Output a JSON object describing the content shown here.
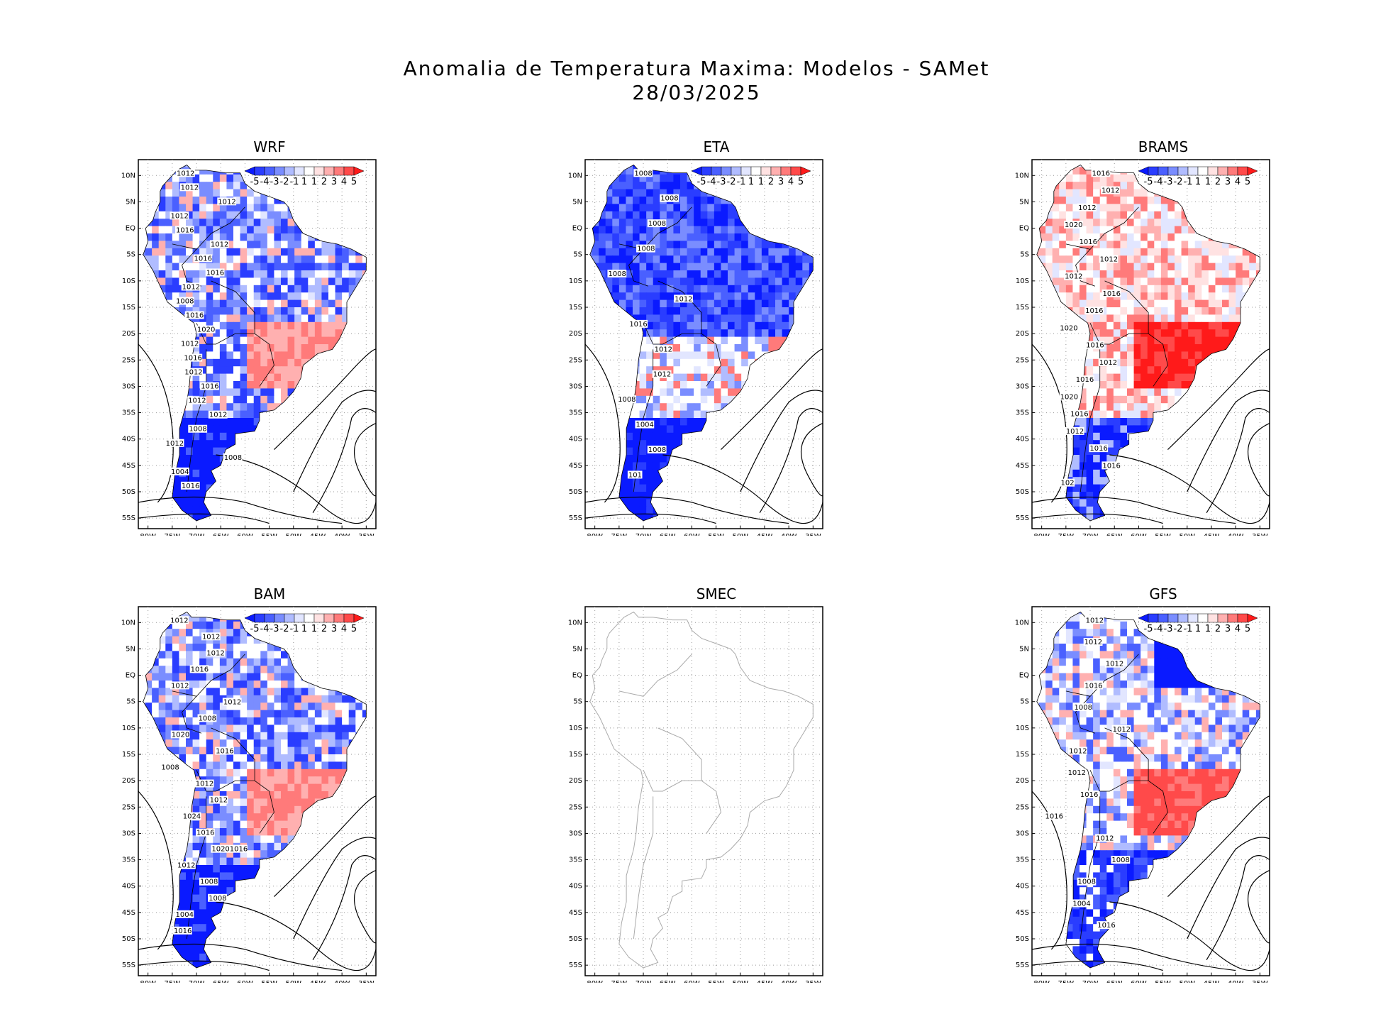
{
  "title_line1": "Anomalia de Temperatura Maxima: Modelos - SAMet",
  "title_line2": "28/03/2025",
  "lat_ticks": [
    "10N",
    "5N",
    "EQ",
    "5S",
    "10S",
    "15S",
    "20S",
    "25S",
    "30S",
    "35S",
    "40S",
    "45S",
    "50S",
    "55S"
  ],
  "lon_ticks": [
    "80W",
    "75W",
    "70W",
    "65W",
    "60W",
    "55W",
    "50W",
    "45W",
    "40W",
    "35W"
  ],
  "colorbar": {
    "labels": [
      "-5",
      "-4",
      "-3",
      "-2",
      "-1",
      "1",
      "1",
      "2",
      "3",
      "4",
      "5"
    ],
    "colors": [
      "#0a1aff",
      "#2a3dff",
      "#4a60ff",
      "#7a8dff",
      "#b0bcff",
      "#e2e6ff",
      "#ffffff",
      "#ffe2e2",
      "#ffb0b0",
      "#ff7a7a",
      "#ff4a4a",
      "#ff1a1a"
    ]
  },
  "panels": [
    {
      "name": "WRF",
      "style": "blue-mixed",
      "labels": [
        "1012",
        "1012",
        "1012",
        "1012",
        "1016",
        "1012",
        "1016",
        "1016",
        "1012",
        "1008",
        "1016",
        "1020",
        "1012",
        "1016",
        "1012",
        "1016",
        "1012",
        "1012",
        "1008",
        "1012",
        "1008",
        "1004",
        "1016"
      ]
    },
    {
      "name": "ETA",
      "style": "blue",
      "labels": [
        "1008",
        "1008",
        "1008",
        "1008",
        "1008",
        "1012",
        "1016",
        "1012",
        "1012",
        "1008",
        "1004",
        "1008",
        "101"
      ]
    },
    {
      "name": "BRAMS",
      "style": "red",
      "labels": [
        "1016",
        "1012",
        "1012",
        "1020",
        "1016",
        "1012",
        "1012",
        "1016",
        "1016",
        "1020",
        "1016",
        "1012",
        "1016",
        "1020",
        "1016",
        "1012",
        "1016",
        "1016",
        "102"
      ]
    },
    {
      "name": "BAM",
      "style": "blue-mixed",
      "labels": [
        "1012",
        "1012",
        "1012",
        "1016",
        "1012",
        "1012",
        "1008",
        "1020",
        "1016",
        "1008",
        "1012",
        "1012",
        "1024",
        "1016",
        "10201016",
        "1012",
        "1008",
        "1008",
        "1004",
        "1016"
      ]
    },
    {
      "name": "SMEC",
      "style": "empty",
      "labels": []
    },
    {
      "name": "GFS",
      "style": "mixed",
      "labels": [
        "1012",
        "1012",
        "1012",
        "1016",
        "1008",
        "1012",
        "1012",
        "1012",
        "1016",
        "1016",
        "1012",
        "1008",
        "1008",
        "1004",
        "1016"
      ]
    }
  ]
}
